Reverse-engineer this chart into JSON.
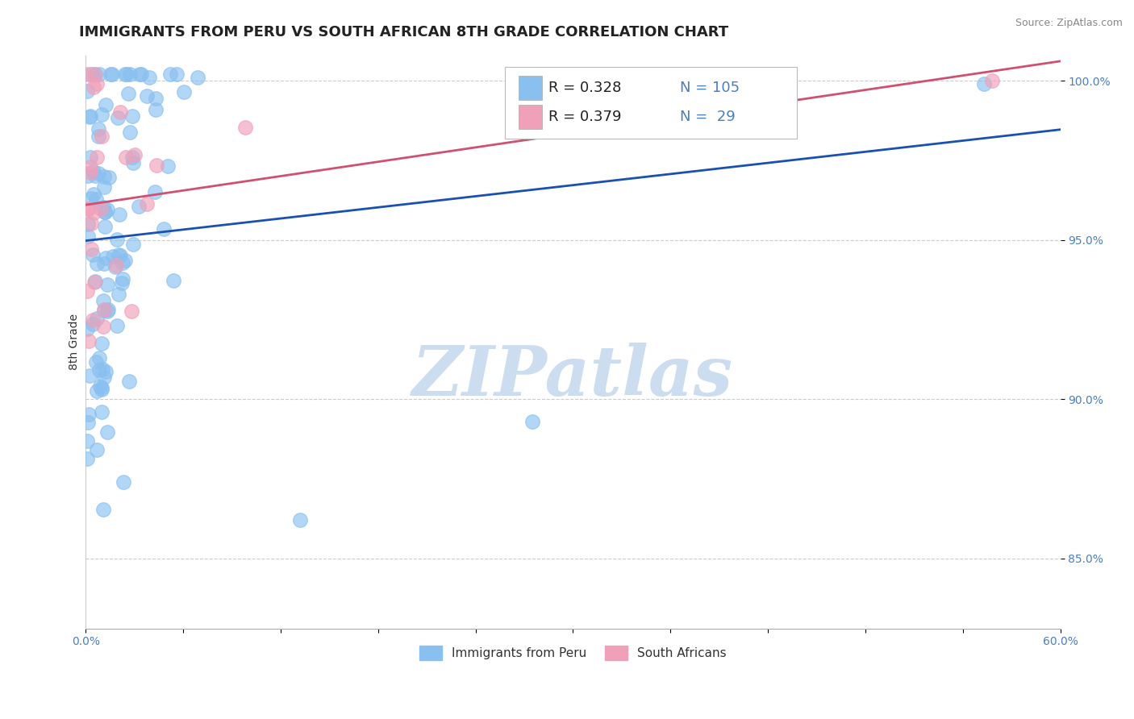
{
  "title": "IMMIGRANTS FROM PERU VS SOUTH AFRICAN 8TH GRADE CORRELATION CHART",
  "source_text": "Source: ZipAtlas.com",
  "ylabel": "8th Grade",
  "xlim": [
    0.0,
    0.6
  ],
  "ylim": [
    0.828,
    1.008
  ],
  "xticks": [
    0.0,
    0.06,
    0.12,
    0.18,
    0.24,
    0.3,
    0.36,
    0.42,
    0.48,
    0.54,
    0.6
  ],
  "xticklabels": [
    "0.0%",
    "",
    "",
    "",
    "",
    "",
    "",
    "",
    "",
    "",
    "60.0%"
  ],
  "yticks": [
    0.85,
    0.9,
    0.95,
    1.0
  ],
  "yticklabels": [
    "85.0%",
    "90.0%",
    "95.0%",
    "100.0%"
  ],
  "blue_color": "#89c0f0",
  "pink_color": "#f0a0b8",
  "blue_line_color": "#1a50b0",
  "pink_line_color": "#d05070",
  "legend_R1": "0.328",
  "legend_N1": "105",
  "legend_R2": "0.379",
  "legend_N2": "29",
  "legend_label1": "Immigrants from Peru",
  "legend_label2": "South Africans",
  "watermark": "ZIPatlas",
  "watermark_color": "#ccddf0",
  "background_color": "#ffffff",
  "grid_color": "#cccccc",
  "title_fontsize": 13,
  "axis_label_fontsize": 10,
  "tick_fontsize": 10,
  "legend_fontsize": 13
}
